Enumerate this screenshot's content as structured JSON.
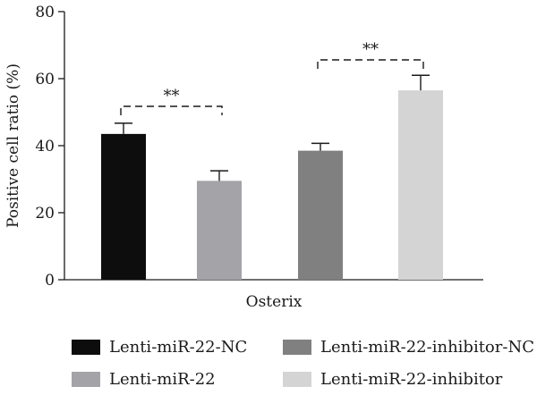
{
  "chart_data": {
    "type": "bar",
    "ylabel": "Positive cell ratio (%)",
    "xlabel": "Osterix",
    "ylim": [
      0,
      80
    ],
    "yticks": [
      "0",
      "20",
      "40",
      "60",
      "80"
    ],
    "categories": [
      "Lenti-miR-22-NC",
      "Lenti-miR-22",
      "Lenti-miR-22-inhibitor-NC",
      "Lenti-miR-22-inhibitor"
    ],
    "values": [
      43.5,
      29.5,
      38.5,
      56.5
    ],
    "errors": [
      3.2,
      3.0,
      2.2,
      4.5
    ],
    "colors": [
      "#0d0d0d",
      "#a3a3a8",
      "#808080",
      "#d4d4d4"
    ],
    "significance": [
      {
        "from": 0,
        "to": 1,
        "label": "**"
      },
      {
        "from": 2,
        "to": 3,
        "label": "**"
      }
    ],
    "legend": [
      {
        "label": "Lenti-miR-22-NC",
        "color": "#0d0d0d"
      },
      {
        "label": "Lenti-miR-22-inhibitor-NC",
        "color": "#808080"
      },
      {
        "label": "Lenti-miR-22",
        "color": "#a3a3a8"
      },
      {
        "label": "Lenti-miR-22-inhibitor",
        "color": "#d4d4d4"
      }
    ]
  }
}
